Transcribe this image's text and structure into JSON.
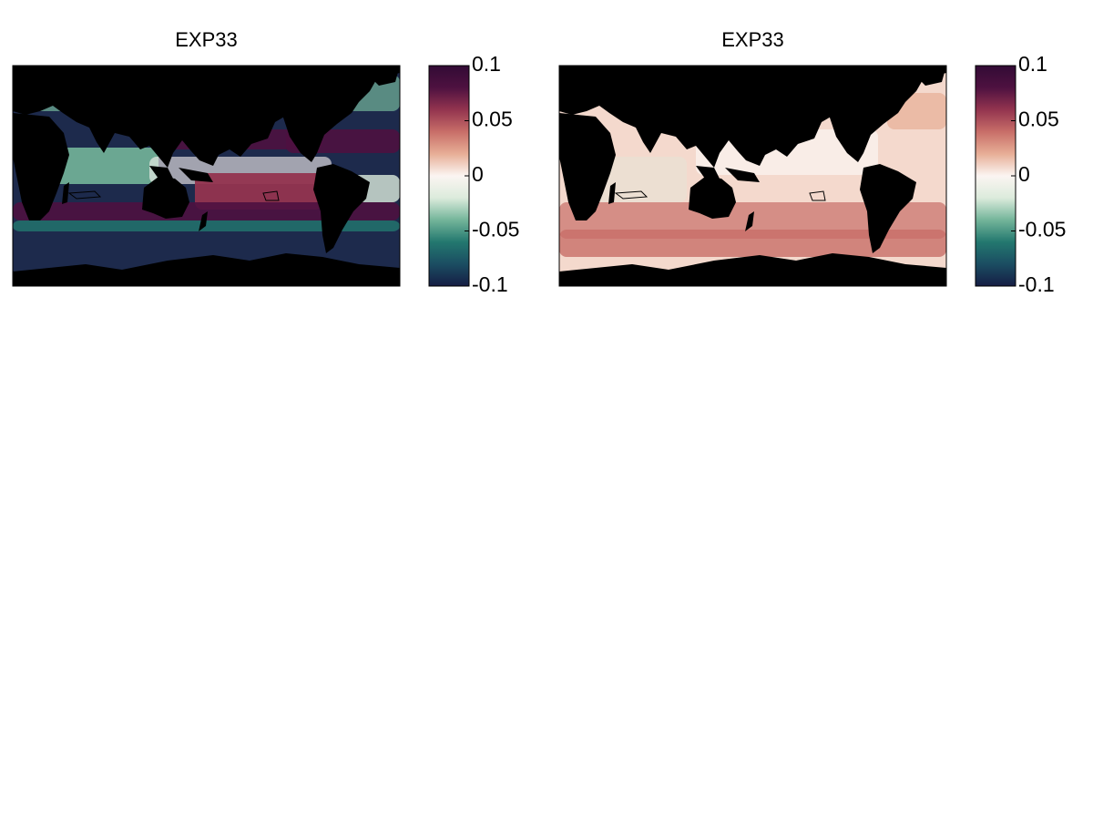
{
  "panels": [
    {
      "title": "EXP33",
      "ocean": "#1d2a4c",
      "colorbar": {
        "lim": [
          -0.1,
          0.1
        ],
        "ticks": [
          0.1,
          0.05,
          0,
          -0.05,
          -0.1
        ],
        "colors": [
          "#151d44",
          "#1b4d62",
          "#23786f",
          "#74b59a",
          "#dcebdc",
          "#fbf5f2",
          "#e7ae96",
          "#c86e68",
          "#93344f",
          "#4e1140",
          "#320b35"
        ]
      }
    },
    {
      "title": "EXP33",
      "ocean": "#f4d9cd",
      "colorbar": {
        "lim": [
          -0.1,
          0.1
        ],
        "ticks": [
          0.1,
          0.05,
          0,
          -0.05,
          -0.1
        ],
        "colors": [
          "#151d44",
          "#1b4d62",
          "#23786f",
          "#74b59a",
          "#dcebdc",
          "#fbf5f2",
          "#e7ae96",
          "#c86e68",
          "#93344f",
          "#4e1140",
          "#320b35"
        ]
      }
    }
  ]
}
